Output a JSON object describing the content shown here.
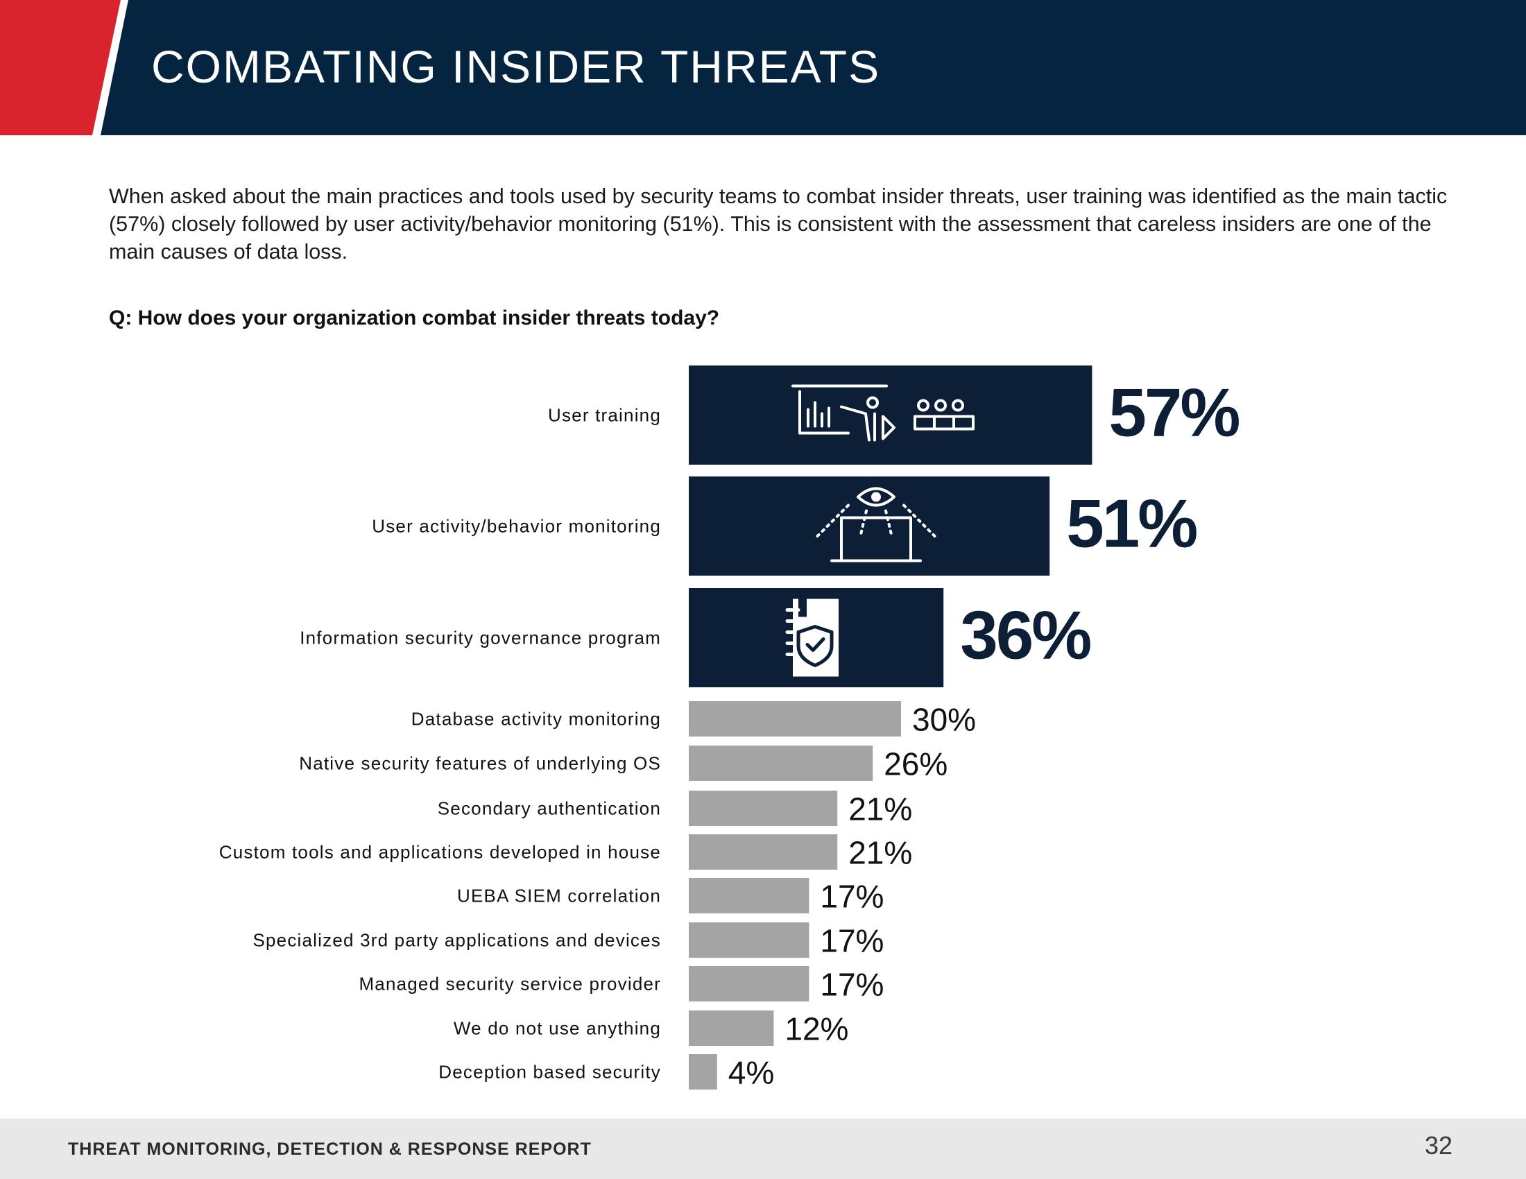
{
  "header": {
    "title": "COMBATING INSIDER THREATS"
  },
  "intro": {
    "text": "When asked about the main practices and tools used by security teams to combat insider threats, user training was identified as the main tactic (57%) closely followed by user activity/behavior monitoring (51%). This is consistent with the assessment that careless insiders are one of the main causes of data loss."
  },
  "question": "Q: How does your organization combat insider threats today?",
  "colors": {
    "navy": "#04243f",
    "bar_dark": "#0c1f36",
    "bar_gray": "#a4a4a4",
    "red": "#d9232d"
  },
  "chart_data": {
    "type": "bar",
    "orientation": "horizontal",
    "title": "Q: How does your organization combat insider threats today?",
    "unit": "%",
    "xlim": [
      0,
      100
    ],
    "categories": [
      "User training",
      "User activity/behavior monitoring",
      "Information security governance program",
      "Database activity monitoring",
      "Native security features of underlying OS",
      "Secondary authentication",
      "Custom tools and applications developed in house",
      "UEBA SIEM correlation",
      "Specialized 3rd party applications and devices",
      "Managed security service provider",
      "We do not use anything",
      "Deception based security"
    ],
    "values": [
      57,
      51,
      36,
      30,
      26,
      21,
      21,
      17,
      17,
      17,
      12,
      4
    ],
    "labels": [
      "57%",
      "51%",
      "36%",
      "30%",
      "26%",
      "21%",
      "21%",
      "17%",
      "17%",
      "17%",
      "12%",
      "4%"
    ],
    "highlighted": [
      true,
      true,
      true,
      false,
      false,
      false,
      false,
      false,
      false,
      false,
      false,
      false
    ],
    "icons": [
      "training-presentation-icon",
      "eye-monitoring-laptop-icon",
      "shield-document-icon",
      "",
      "",
      "",
      "",
      "",
      "",
      "",
      "",
      ""
    ]
  },
  "footer": {
    "title": "THREAT MONITORING, DETECTION & RESPONSE REPORT",
    "page_number": "32"
  }
}
